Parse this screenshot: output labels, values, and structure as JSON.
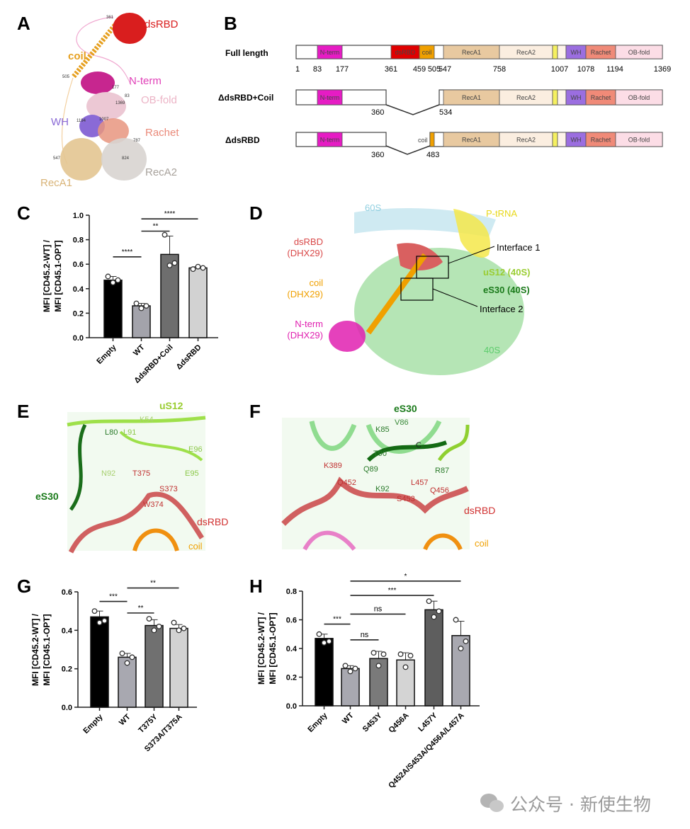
{
  "panels": {
    "A": "A",
    "B": "B",
    "C": "C",
    "D": "D",
    "E": "E",
    "F": "F",
    "G": "G",
    "H": "H"
  },
  "panel_a": {
    "labels": {
      "dsRBD": "dsRBD",
      "coil": "coil",
      "nterm": "N-term",
      "obfold": "OB-fold",
      "wh": "WH",
      "rachet": "Rachet",
      "reca1": "RecA1",
      "reca2": "RecA2"
    },
    "residues": {
      "r361": "361",
      "r505": "505",
      "r177": "177",
      "r83": "83",
      "r1369": "1369",
      "r1194": "1194",
      "r1007": "1007",
      "r787": "787",
      "r547": "547",
      "r824": "824"
    },
    "colors": {
      "dsRBD": "#d91e1e",
      "coil": "#e6a020",
      "nterm": "#d63aa8",
      "obfold": "#e8b4c4",
      "wh": "#8a6ad6",
      "rachet": "#e88a7a",
      "reca1": "#d9b478",
      "reca2": "#b0aaa4"
    }
  },
  "panel_b": {
    "rows": [
      {
        "name": "Full length",
        "numbers": [
          "1",
          "83",
          "177",
          "361",
          "459",
          "505",
          "547",
          "758",
          "1007",
          "1078",
          "1194",
          "1369"
        ]
      },
      {
        "name": "ΔdsRBD+Coil",
        "numbers": [
          "360",
          "534"
        ]
      },
      {
        "name": "ΔdsRBD",
        "numbers": [
          "360",
          "483"
        ],
        "coil_label": "coil"
      }
    ],
    "domains": {
      "nterm": {
        "label": "N-term",
        "color": "#e61cc4"
      },
      "dsrbd": {
        "label": "dsRBD",
        "color": "#e00000"
      },
      "coil": {
        "label": "coil",
        "color": "#f0a000"
      },
      "reca1": {
        "label": "RecA1",
        "color": "#e8c9a0"
      },
      "reca2": {
        "label": "RecA2",
        "color": "#fbeee0"
      },
      "motif": {
        "label": "",
        "color": "#f5f060"
      },
      "wh": {
        "label": "WH",
        "color": "#9b6ee0"
      },
      "rachet": {
        "label": "Rachet",
        "color": "#f08a78"
      },
      "obfold": {
        "label": "OB-fold",
        "color": "#fcdde6"
      }
    }
  },
  "panel_d": {
    "labels": {
      "s60": "60S",
      "ptrna": "P-tRNA",
      "dsrbd1": "dsRBD",
      "dsrbd2": "(DHX29)",
      "coil1": "coil",
      "coil2": "(DHX29)",
      "nterm1": "N-term",
      "nterm2": "(DHX29)",
      "interface1": "Interface 1",
      "interface2": "Interface 2",
      "us12": "uS12 (40S)",
      "es30": "eS30 (40S)",
      "s40": "40S"
    },
    "colors": {
      "s60": "#8fcfe0",
      "ptrna": "#f2e21a",
      "dsrbd": "#d94848",
      "coil": "#f0a000",
      "nterm": "#e020b0",
      "us12": "#9acd32",
      "es30": "#1a7a1a",
      "s40": "#5ccc6c"
    }
  },
  "panel_e": {
    "labels": {
      "us12": "uS12",
      "l80": "L80",
      "l91": "L91",
      "k54": "K54",
      "e96": "E96",
      "n92": "N92",
      "t375": "T375",
      "e95": "E95",
      "s373": "S373",
      "w374": "W374",
      "es30": "eS30",
      "dsrbd": "dsRBD",
      "coil": "coil"
    }
  },
  "panel_f": {
    "labels": {
      "es30": "eS30",
      "v86": "V86",
      "k85": "K85",
      "c": "C",
      "t90": "T90",
      "q89": "Q89",
      "k389": "K389",
      "r87": "R87",
      "q452": "Q452",
      "l457": "L457",
      "k92": "K92",
      "q456": "Q456",
      "s453": "S453",
      "dsrbd": "dsRBD",
      "coil": "coil"
    }
  },
  "chart_data": [
    {
      "panel": "C",
      "type": "bar",
      "ylabel": [
        "MFI [CD45.2-WT] /",
        "MFI [CD45.1-OPT]"
      ],
      "ylim": [
        0,
        1.0
      ],
      "yticks": [
        "0.0",
        "0.2",
        "0.4",
        "0.6",
        "0.8",
        "1.0"
      ],
      "categories": [
        "Empty",
        "WT",
        "ΔdsRBD+Coil",
        "ΔdsRBD"
      ],
      "values": [
        0.47,
        0.26,
        0.68,
        0.57
      ],
      "sd": [
        0.03,
        0.02,
        0.15,
        0.01
      ],
      "points": [
        [
          0.5,
          0.45,
          0.47
        ],
        [
          0.28,
          0.24,
          0.26
        ],
        [
          0.84,
          0.59,
          0.61
        ],
        [
          0.56,
          0.58,
          0.57
        ]
      ],
      "colors": [
        "#000000",
        "#a3a3ab",
        "#6e6e6e",
        "#d2d2d2"
      ],
      "significance": [
        {
          "from": 0,
          "to": 1,
          "y": 0.66,
          "label": "****"
        },
        {
          "from": 1,
          "to": 2,
          "y": 0.87,
          "label": "**"
        },
        {
          "from": 1,
          "to": 3,
          "y": 0.97,
          "label": "****"
        }
      ]
    },
    {
      "panel": "G",
      "type": "bar",
      "ylabel": [
        "MFI [CD45.2-WT] /",
        "MFI [CD45.1-OPT]"
      ],
      "ylim": [
        0,
        0.6
      ],
      "yticks": [
        "0.0",
        "0.2",
        "0.4",
        "0.6"
      ],
      "categories": [
        "Empty",
        "WT",
        "T375Y",
        "S373A/T375A"
      ],
      "values": [
        0.47,
        0.26,
        0.425,
        0.41
      ],
      "sd": [
        0.03,
        0.02,
        0.03,
        0.02
      ],
      "points": [
        [
          0.5,
          0.44,
          0.45
        ],
        [
          0.28,
          0.23,
          0.26
        ],
        [
          0.46,
          0.4,
          0.42
        ],
        [
          0.44,
          0.4,
          0.41
        ]
      ],
      "colors": [
        "#000000",
        "#a8a8b0",
        "#707070",
        "#d2d2d2"
      ],
      "significance": [
        {
          "from": 0,
          "to": 1,
          "y": 0.55,
          "label": "***"
        },
        {
          "from": 1,
          "to": 2,
          "y": 0.49,
          "label": "**"
        },
        {
          "from": 1,
          "to": 3,
          "y": 0.62,
          "label": "**"
        }
      ]
    },
    {
      "panel": "H",
      "type": "bar",
      "ylabel": [
        "MFI [CD45.2-WT] /",
        "MFI [CD45.1-OPT]"
      ],
      "ylim": [
        0,
        0.8
      ],
      "yticks": [
        "0.0",
        "0.2",
        "0.4",
        "0.6",
        "0.8"
      ],
      "categories": [
        "Empty",
        "WT",
        "S453Y",
        "Q456A",
        "L457Y",
        "Q452A/S453A/Q456A/L457A"
      ],
      "values": [
        0.47,
        0.26,
        0.33,
        0.32,
        0.67,
        0.49
      ],
      "sd": [
        0.03,
        0.02,
        0.05,
        0.05,
        0.06,
        0.1
      ],
      "points": [
        [
          0.5,
          0.44,
          0.45
        ],
        [
          0.28,
          0.24,
          0.26
        ],
        [
          0.37,
          0.28,
          0.36
        ],
        [
          0.36,
          0.27,
          0.35
        ],
        [
          0.73,
          0.62,
          0.66
        ],
        [
          0.6,
          0.4,
          0.45
        ]
      ],
      "colors": [
        "#000000",
        "#a8a8b0",
        "#7a7a7a",
        "#d4d4d4",
        "#5e5e5e",
        "#a8a8b0"
      ],
      "significance": [
        {
          "from": 0,
          "to": 1,
          "y": 0.57,
          "label": "***"
        },
        {
          "from": 1,
          "to": 2,
          "y": 0.46,
          "label": "ns"
        },
        {
          "from": 1,
          "to": 3,
          "y": 0.64,
          "label": "ns"
        },
        {
          "from": 1,
          "to": 4,
          "y": 0.77,
          "label": "***"
        },
        {
          "from": 1,
          "to": 5,
          "y": 0.87,
          "label": "*"
        }
      ]
    }
  ],
  "watermark": {
    "text": "公众号 · 新使生物",
    "icon": "wechat-icon"
  }
}
